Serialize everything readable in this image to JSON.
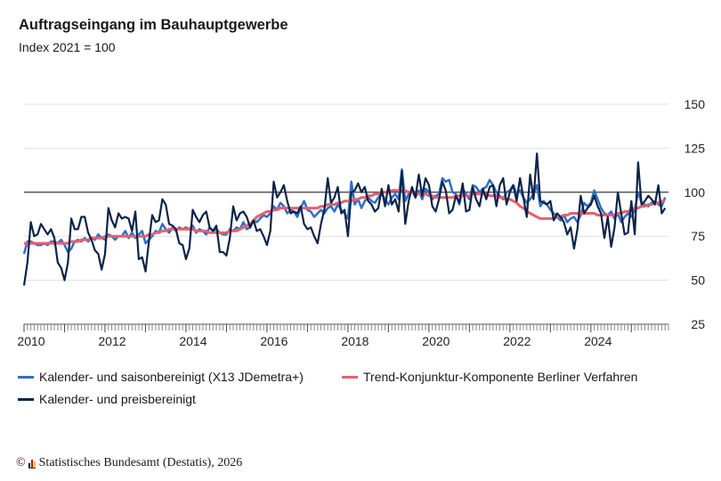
{
  "header": {
    "title": "Auftragseingang im Bauhauptgewerbe",
    "subtitle": "Index 2021 = 100"
  },
  "source": {
    "copyright": "©",
    "text": "Statistisches Bundesamt (Destatis), 2026"
  },
  "chart_data": {
    "type": "line",
    "title": "Auftragseingang im Bauhauptgewerbe",
    "subtitle": "Index 2021 = 100",
    "x_start": "2010-01",
    "x_end": "2025-11",
    "frequency": "monthly",
    "x_tick_labels": [
      "2010",
      "2012",
      "2014",
      "2016",
      "2018",
      "2020",
      "2022",
      "2024"
    ],
    "ylim": [
      25,
      150
    ],
    "y_ticks": [
      25,
      50,
      75,
      100,
      125,
      150
    ],
    "y_axis_side": "right",
    "reference_line": 100,
    "grid": true,
    "legend_placement": "bottom",
    "series": [
      {
        "name": "Kalender- und saisonbereinigt (X13 JDemetra+)",
        "color": "#2f6fc6",
        "values": [
          65,
          72,
          72,
          71,
          70,
          70,
          71,
          70,
          72,
          72,
          71,
          73,
          70,
          66,
          68,
          72,
          73,
          72,
          74,
          72,
          74,
          73,
          76,
          74,
          73,
          76,
          75,
          73,
          75,
          75,
          78,
          74,
          77,
          74,
          76,
          78,
          71,
          73,
          75,
          78,
          77,
          82,
          79,
          77,
          80,
          78,
          80,
          79,
          80,
          79,
          81,
          77,
          79,
          78,
          76,
          80,
          78,
          79,
          77,
          76,
          76,
          79,
          78,
          80,
          79,
          83,
          79,
          80,
          84,
          83,
          85,
          87,
          86,
          88,
          92,
          90,
          94,
          92,
          88,
          90,
          89,
          86,
          91,
          95,
          90,
          89,
          86,
          88,
          90,
          88,
          91,
          92,
          89,
          93,
          90,
          88,
          85,
          106,
          93,
          96,
          91,
          95,
          97,
          95,
          94,
          97,
          99,
          96,
          93,
          97,
          99,
          96,
          113,
          95,
          99,
          101,
          97,
          101,
          96,
          102,
          100,
          96,
          98,
          99,
          108,
          106,
          107,
          100,
          99,
          93,
          102,
          99,
          96,
          104,
          103,
          100,
          102,
          103,
          107,
          104,
          100,
          98,
          96,
          100,
          101,
          104,
          99,
          101,
          97,
          94,
          96,
          99,
          104,
          92,
          95,
          93,
          90,
          88,
          86,
          84,
          87,
          83,
          85,
          86,
          83,
          87,
          94,
          92,
          94,
          101,
          96,
          91,
          88,
          87,
          89,
          85,
          88,
          83,
          86,
          88,
          86,
          90,
          100,
          94,
          93,
          92,
          94,
          95,
          93,
          92,
          97
        ]
      },
      {
        "name": "Trend-Konjunktur-Komponente Berliner Verfahren",
        "color": "#e8606e",
        "values": [
          71,
          71,
          71,
          71,
          71,
          71,
          71,
          71,
          71,
          71,
          71,
          71,
          71,
          71,
          72,
          72,
          72,
          73,
          73,
          73,
          74,
          74,
          74,
          74,
          75,
          75,
          75,
          75,
          75,
          75,
          75,
          75,
          75,
          75,
          75,
          75,
          75,
          76,
          76,
          77,
          77,
          78,
          78,
          79,
          79,
          79,
          79,
          79,
          79,
          79,
          79,
          78,
          78,
          78,
          78,
          77,
          77,
          77,
          77,
          77,
          77,
          78,
          78,
          78,
          79,
          80,
          81,
          82,
          84,
          86,
          87,
          88,
          89,
          89,
          90,
          90,
          91,
          91,
          91,
          91,
          91,
          91,
          91,
          91,
          91,
          91,
          91,
          91,
          92,
          92,
          93,
          93,
          93,
          94,
          94,
          95,
          95,
          95,
          96,
          96,
          97,
          97,
          98,
          98,
          99,
          99,
          100,
          100,
          100,
          101,
          101,
          101,
          101,
          101,
          100,
          100,
          100,
          99,
          99,
          99,
          98,
          98,
          97,
          97,
          97,
          97,
          97,
          97,
          98,
          98,
          98,
          98,
          98,
          99,
          99,
          99,
          99,
          99,
          98,
          98,
          98,
          97,
          97,
          96,
          96,
          95,
          94,
          92,
          91,
          89,
          88,
          87,
          86,
          85,
          85,
          85,
          85,
          85,
          86,
          86,
          87,
          87,
          88,
          88,
          88,
          88,
          88,
          88,
          88,
          88,
          87,
          87,
          87,
          87,
          87,
          87,
          88,
          88,
          89,
          89,
          90,
          91,
          91,
          92,
          92,
          93,
          93,
          94,
          94,
          95,
          95
        ]
      },
      {
        "name": "Kalender- und preisbereinigt",
        "color": "#0c2348",
        "values": [
          47,
          60,
          83,
          75,
          76,
          82,
          79,
          76,
          79,
          74,
          60,
          57,
          50,
          60,
          85,
          79,
          79,
          86,
          86,
          77,
          73,
          67,
          65,
          56,
          65,
          91,
          84,
          80,
          88,
          85,
          86,
          85,
          78,
          89,
          62,
          63,
          55,
          72,
          87,
          83,
          84,
          96,
          93,
          82,
          81,
          79,
          71,
          70,
          62,
          68,
          90,
          86,
          83,
          87,
          89,
          80,
          78,
          81,
          66,
          66,
          64,
          74,
          92,
          84,
          88,
          89,
          86,
          80,
          84,
          78,
          79,
          75,
          70,
          78,
          106,
          97,
          100,
          104,
          95,
          88,
          89,
          88,
          92,
          82,
          79,
          80,
          75,
          71,
          82,
          90,
          108,
          94,
          97,
          103,
          88,
          90,
          75,
          100,
          101,
          105,
          100,
          103,
          95,
          93,
          89,
          91,
          102,
          92,
          104,
          93,
          96,
          89,
          112,
          82,
          95,
          103,
          97,
          110,
          98,
          108,
          104,
          92,
          89,
          96,
          106,
          101,
          88,
          90,
          98,
          94,
          105,
          89,
          90,
          103,
          96,
          92,
          102,
          96,
          103,
          104,
          92,
          104,
          108,
          93,
          100,
          104,
          95,
          108,
          97,
          86,
          110,
          96,
          122,
          95,
          94,
          93,
          95,
          84,
          88,
          86,
          83,
          76,
          80,
          68,
          79,
          98,
          88,
          91,
          93,
          98,
          92,
          88,
          74,
          86,
          69,
          80,
          100,
          88,
          76,
          77,
          95,
          76,
          117,
          93,
          95,
          98,
          96,
          93,
          104,
          88,
          91
        ]
      }
    ]
  }
}
